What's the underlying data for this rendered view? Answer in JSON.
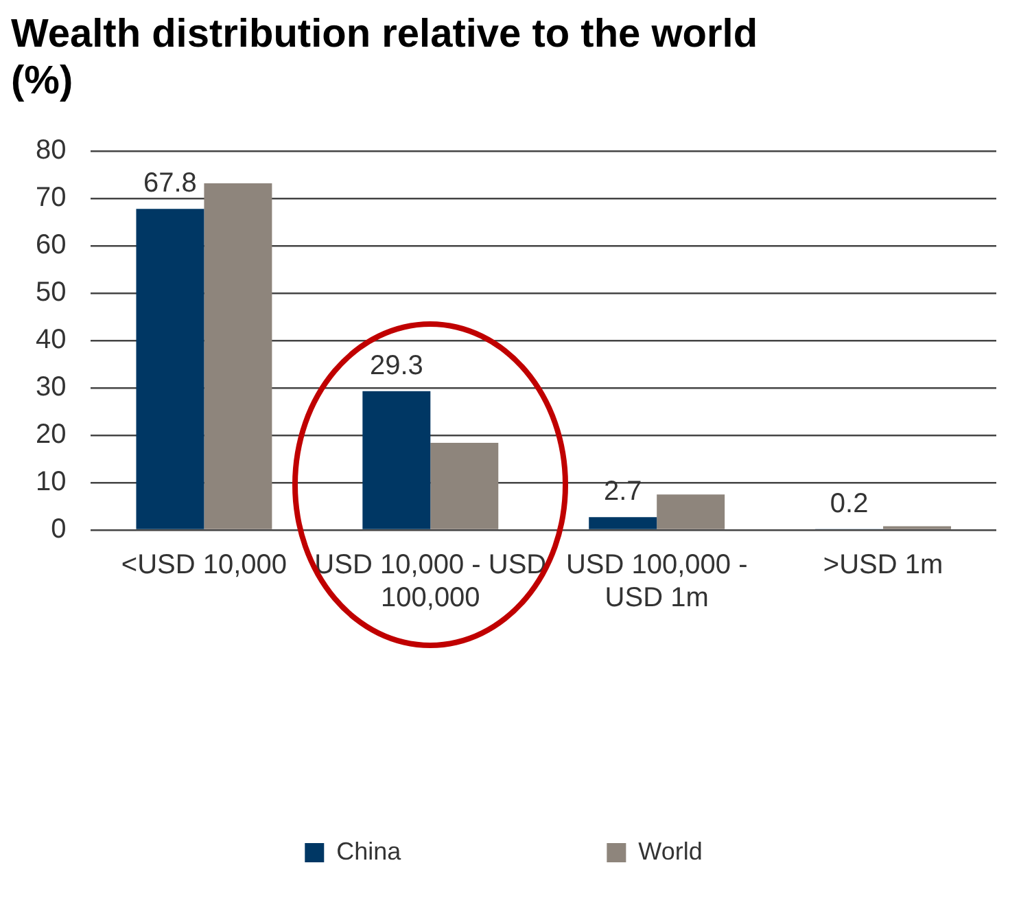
{
  "chart_data": {
    "type": "bar",
    "title": "Wealth distribution relative to the world (%)",
    "categories": [
      "<USD 10,000",
      "USD 10,000 - USD 100,000",
      "USD 100,000 - USD 1m",
      ">USD 1m"
    ],
    "series": [
      {
        "name": "China",
        "color": "#003764",
        "values": [
          67.8,
          29.3,
          2.7,
          0.2
        ],
        "value_labels": [
          "67.8",
          "29.3",
          "2.7",
          "0.2"
        ]
      },
      {
        "name": "World",
        "color": "#8e857c",
        "values": [
          73.2,
          18.4,
          7.5,
          0.8
        ]
      }
    ],
    "ylim": [
      0,
      80
    ],
    "yticks": [
      0,
      10,
      20,
      30,
      40,
      50,
      60,
      70,
      80
    ],
    "grid": "y",
    "legend": "bottom"
  }
}
